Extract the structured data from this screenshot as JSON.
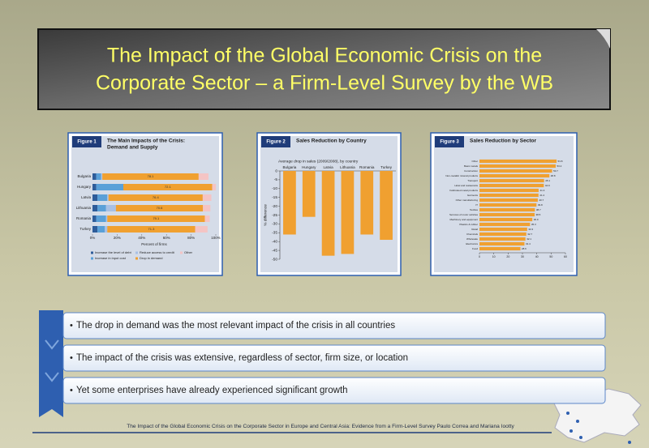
{
  "title": [
    "The Impact of the Global Economic Crisis on the",
    "Corporate Sector – a Firm-Level Survey by the WB"
  ],
  "figures": [
    {
      "type": "stacked-hbar",
      "label": "Figure 1",
      "title": [
        "The Main Impacts of the Crisis:",
        "Demand and Supply"
      ],
      "categories": [
        "Bulgaria",
        "Hungary",
        "Latvia",
        "Lithuania",
        "Romania",
        "Turkey"
      ],
      "series": [
        {
          "name": "Increase the level of debt",
          "color": "#2e5c9a",
          "values": [
            3,
            3,
            4,
            4,
            3,
            4
          ]
        },
        {
          "name": "Increase in input cost",
          "color": "#5aa0d8",
          "values": [
            4,
            22,
            8,
            7,
            8,
            6
          ]
        },
        {
          "name": "Reduce access to credit",
          "color": "#a8c0e4",
          "values": [
            1,
            0,
            1,
            8,
            1,
            2
          ]
        },
        {
          "name": "Drop in demand",
          "color": "#f0a030",
          "values": [
            78.1,
            72.1,
            76.4,
            70.6,
            79.1,
            71.3
          ]
        },
        {
          "name": "Other",
          "color": "#f4c4c4",
          "values": [
            8,
            3,
            7,
            6,
            4,
            10
          ]
        }
      ],
      "xlabel": "Percent of firms",
      "xlim": [
        0,
        100
      ],
      "xticks": [
        {
          "value": 0,
          "label": "0%"
        },
        {
          "value": 20,
          "label": "20%"
        },
        {
          "value": 40,
          "label": "40%"
        },
        {
          "value": 60,
          "label": "60%"
        },
        {
          "value": 80,
          "label": "80%"
        },
        {
          "value": 100,
          "label": "100%"
        }
      ]
    },
    {
      "type": "bar",
      "label": "Figure 2",
      "title": [
        "Sales Reduction by Country"
      ],
      "subtitle": "Average drop in sales (2009/2008), by country",
      "ylabel": "% difference",
      "categories": [
        "Bulgaria",
        "Hungary",
        "Latvia",
        "Lithuania",
        "Romania",
        "Turkey"
      ],
      "values": [
        -36,
        -26,
        -48,
        -47,
        -36,
        -39
      ],
      "color": "#f0a030",
      "ylim": [
        0,
        -50
      ],
      "yticks": [
        0,
        -5,
        -10,
        -15,
        -20,
        -25,
        -30,
        -35,
        -40,
        -45,
        -50
      ]
    },
    {
      "type": "hbar",
      "label": "Figure 3",
      "title": [
        "Sales Reduction by Sector"
      ],
      "categories": [
        "Other",
        "Basic metals",
        "Construction",
        "Non-metallic mineral products",
        "Transport",
        "Hotel and restaurants",
        "Fabricated metal products",
        "Garments",
        "Other manufacturing",
        "IT",
        "Textiles",
        "Services of motor vehicles",
        "Machinery and equipment",
        "Plastics & rubber",
        "Retail",
        "Chemicals",
        "Wholesale",
        "Electronics",
        "Food"
      ],
      "values": [
        53.8,
        53.2,
        50.7,
        48.8,
        45.1,
        44.9,
        41.3,
        41.2,
        40.7,
        39.8,
        38.7,
        38.5,
        36.9,
        35.3,
        33.3,
        32.7,
        32.1,
        31.4,
        28.6
      ],
      "color": "#f0a030",
      "xlim": [
        0,
        60
      ],
      "xticks": [
        0,
        10,
        20,
        30,
        40,
        50,
        60
      ]
    }
  ],
  "bullets": [
    "The drop in demand was the most relevant impact of the crisis in all countries",
    "The impact of the crisis was extensive, regardless of sector, firm size, or location",
    "Yet some enterprises have already experienced significant growth"
  ],
  "footer": "The Impact of the Global Economic Crisis on the Corporate Sector in Europe and Central Asia: Evidence from a Firm-Level Survey Paulo Correa and Mariana Iootty"
}
